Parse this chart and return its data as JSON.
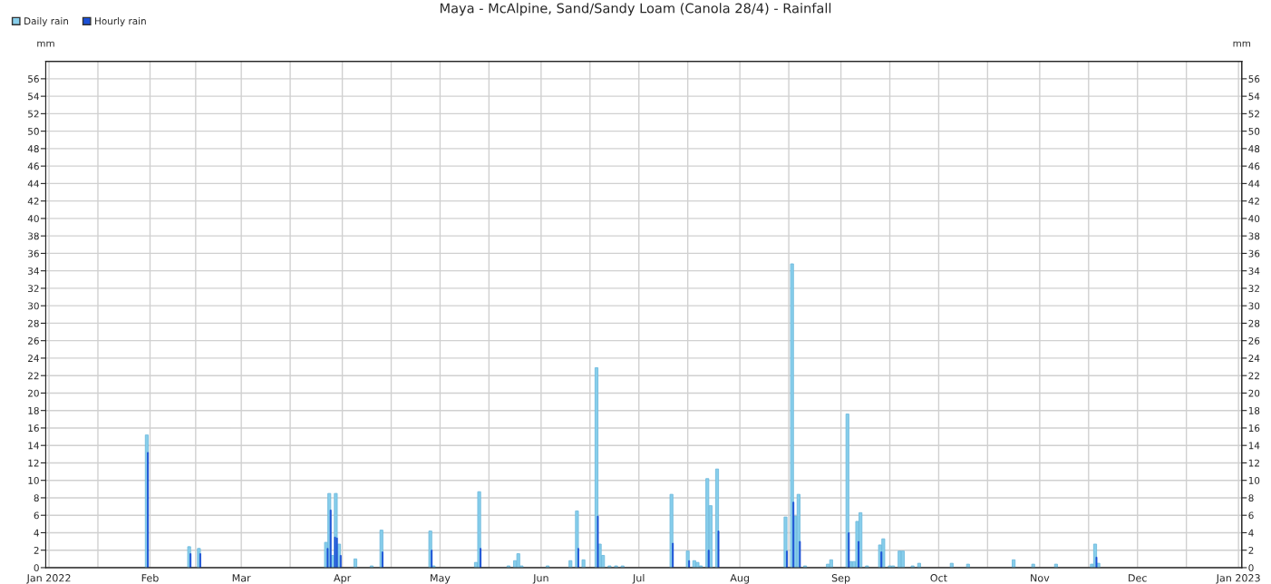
{
  "chart_data": {
    "type": "bar",
    "title": "Maya - McAlpine, Sand/Sandy Loam (Canola 28/4) - Rainfall",
    "ylabel": "mm",
    "y2label": "mm",
    "series": [
      {
        "name": "Daily rain",
        "color": "#87ceeb",
        "x": [
          "2022-01-31",
          "2022-02-13",
          "2022-02-16",
          "2022-03-27",
          "2022-03-28",
          "2022-03-29",
          "2022-03-30",
          "2022-03-31",
          "2022-04-05",
          "2022-04-10",
          "2022-04-13",
          "2022-04-28",
          "2022-04-29",
          "2022-05-12",
          "2022-05-13",
          "2022-05-22",
          "2022-05-24",
          "2022-05-25",
          "2022-05-26",
          "2022-06-03",
          "2022-06-10",
          "2022-06-12",
          "2022-06-14",
          "2022-06-18",
          "2022-06-19",
          "2022-06-20",
          "2022-06-22",
          "2022-06-24",
          "2022-06-26",
          "2022-07-11",
          "2022-07-16",
          "2022-07-18",
          "2022-07-19",
          "2022-07-20",
          "2022-07-22",
          "2022-07-23",
          "2022-07-25",
          "2022-08-15",
          "2022-08-17",
          "2022-08-18",
          "2022-08-19",
          "2022-08-21",
          "2022-08-28",
          "2022-08-29",
          "2022-09-03",
          "2022-09-04",
          "2022-09-05",
          "2022-09-06",
          "2022-09-07",
          "2022-09-09",
          "2022-09-13",
          "2022-09-14",
          "2022-09-16",
          "2022-09-17",
          "2022-09-19",
          "2022-09-20",
          "2022-09-23",
          "2022-09-25",
          "2022-10-05",
          "2022-10-10",
          "2022-10-24",
          "2022-10-30",
          "2022-11-06",
          "2022-11-17",
          "2022-11-18",
          "2022-11-19"
        ],
        "values": [
          15.2,
          2.4,
          2.2,
          2.9,
          8.5,
          1.4,
          8.5,
          2.7,
          1.0,
          0.2,
          4.3,
          4.2,
          0.2,
          0.6,
          8.7,
          0.2,
          0.8,
          1.6,
          0.2,
          0.2,
          0.8,
          6.5,
          0.9,
          22.9,
          2.7,
          1.4,
          0.2,
          0.2,
          0.2,
          8.4,
          1.9,
          0.8,
          0.6,
          0.2,
          10.2,
          7.1,
          11.3,
          5.8,
          34.8,
          5.9,
          8.4,
          0.2,
          0.4,
          0.9,
          17.6,
          0.7,
          0.7,
          5.3,
          6.3,
          0.2,
          2.6,
          3.3,
          0.2,
          0.2,
          1.9,
          1.9,
          0.2,
          0.5,
          0.5,
          0.4,
          0.9,
          0.4,
          0.4,
          0.4,
          2.7,
          0.5
        ]
      },
      {
        "name": "Hourly rain",
        "color": "#1a4fd6",
        "x": [
          "2022-01-31T08:00",
          "2022-02-13T10:00",
          "2022-02-16T10:00",
          "2022-03-27T12:00",
          "2022-03-28T10:00",
          "2022-03-29T18:00",
          "2022-03-30T08:00",
          "2022-03-31T12:00",
          "2022-04-13T08:00",
          "2022-04-28T10:00",
          "2022-05-13T10:00",
          "2022-06-12T10:00",
          "2022-06-18T10:00",
          "2022-07-11T10:00",
          "2022-07-16T10:00",
          "2022-07-22T10:00",
          "2022-07-25T10:00",
          "2022-08-15T10:00",
          "2022-08-17T10:00",
          "2022-08-19T10:00",
          "2022-09-03T10:00",
          "2022-09-06T10:00",
          "2022-09-13T10:00",
          "2022-11-18T10:00"
        ],
        "values": [
          13.2,
          1.6,
          1.6,
          2.2,
          6.6,
          3.5,
          3.4,
          1.4,
          1.8,
          2.0,
          2.2,
          2.2,
          5.9,
          2.8,
          0.8,
          2.0,
          4.2,
          1.9,
          7.5,
          3.0,
          4.0,
          3.0,
          1.8,
          1.2
        ]
      }
    ],
    "xlim": [
      "2021-12-31",
      "2023-01-02"
    ],
    "xticks": [
      {
        "value": "2022-01-01",
        "label": "Jan 2022"
      },
      {
        "value": "2022-01-16",
        "label": null
      },
      {
        "value": "2022-02-01",
        "label": "Feb"
      },
      {
        "value": "2022-02-15",
        "label": null
      },
      {
        "value": "2022-03-01",
        "label": "Mar"
      },
      {
        "value": "2022-03-16",
        "label": null
      },
      {
        "value": "2022-04-01",
        "label": "Apr"
      },
      {
        "value": "2022-04-16",
        "label": null
      },
      {
        "value": "2022-05-01",
        "label": "May"
      },
      {
        "value": "2022-05-16",
        "label": null
      },
      {
        "value": "2022-06-01",
        "label": "Jun"
      },
      {
        "value": "2022-06-16",
        "label": null
      },
      {
        "value": "2022-07-01",
        "label": "Jul"
      },
      {
        "value": "2022-07-16",
        "label": null
      },
      {
        "value": "2022-08-01",
        "label": "Aug"
      },
      {
        "value": "2022-08-16",
        "label": null
      },
      {
        "value": "2022-09-01",
        "label": "Sep"
      },
      {
        "value": "2022-09-16",
        "label": null
      },
      {
        "value": "2022-10-01",
        "label": "Oct"
      },
      {
        "value": "2022-10-16",
        "label": null
      },
      {
        "value": "2022-11-01",
        "label": "Nov"
      },
      {
        "value": "2022-11-16",
        "label": null
      },
      {
        "value": "2022-12-01",
        "label": "Dec"
      },
      {
        "value": "2022-12-16",
        "label": null
      },
      {
        "value": "2023-01-01",
        "label": "Jan 2023"
      }
    ],
    "ylim": [
      0,
      58
    ],
    "yticks": [
      0,
      2,
      4,
      6,
      8,
      10,
      12,
      14,
      16,
      18,
      20,
      22,
      24,
      26,
      28,
      30,
      32,
      34,
      36,
      38,
      40,
      42,
      44,
      46,
      48,
      50,
      52,
      54,
      56
    ],
    "y2lim": [
      0,
      58
    ],
    "y2ticks": [
      0,
      2,
      4,
      6,
      8,
      10,
      12,
      14,
      16,
      18,
      20,
      22,
      24,
      26,
      28,
      30,
      32,
      34,
      36,
      38,
      40,
      42,
      44,
      46,
      48,
      50,
      52,
      54,
      56
    ],
    "grid": true,
    "legend": "top left"
  }
}
